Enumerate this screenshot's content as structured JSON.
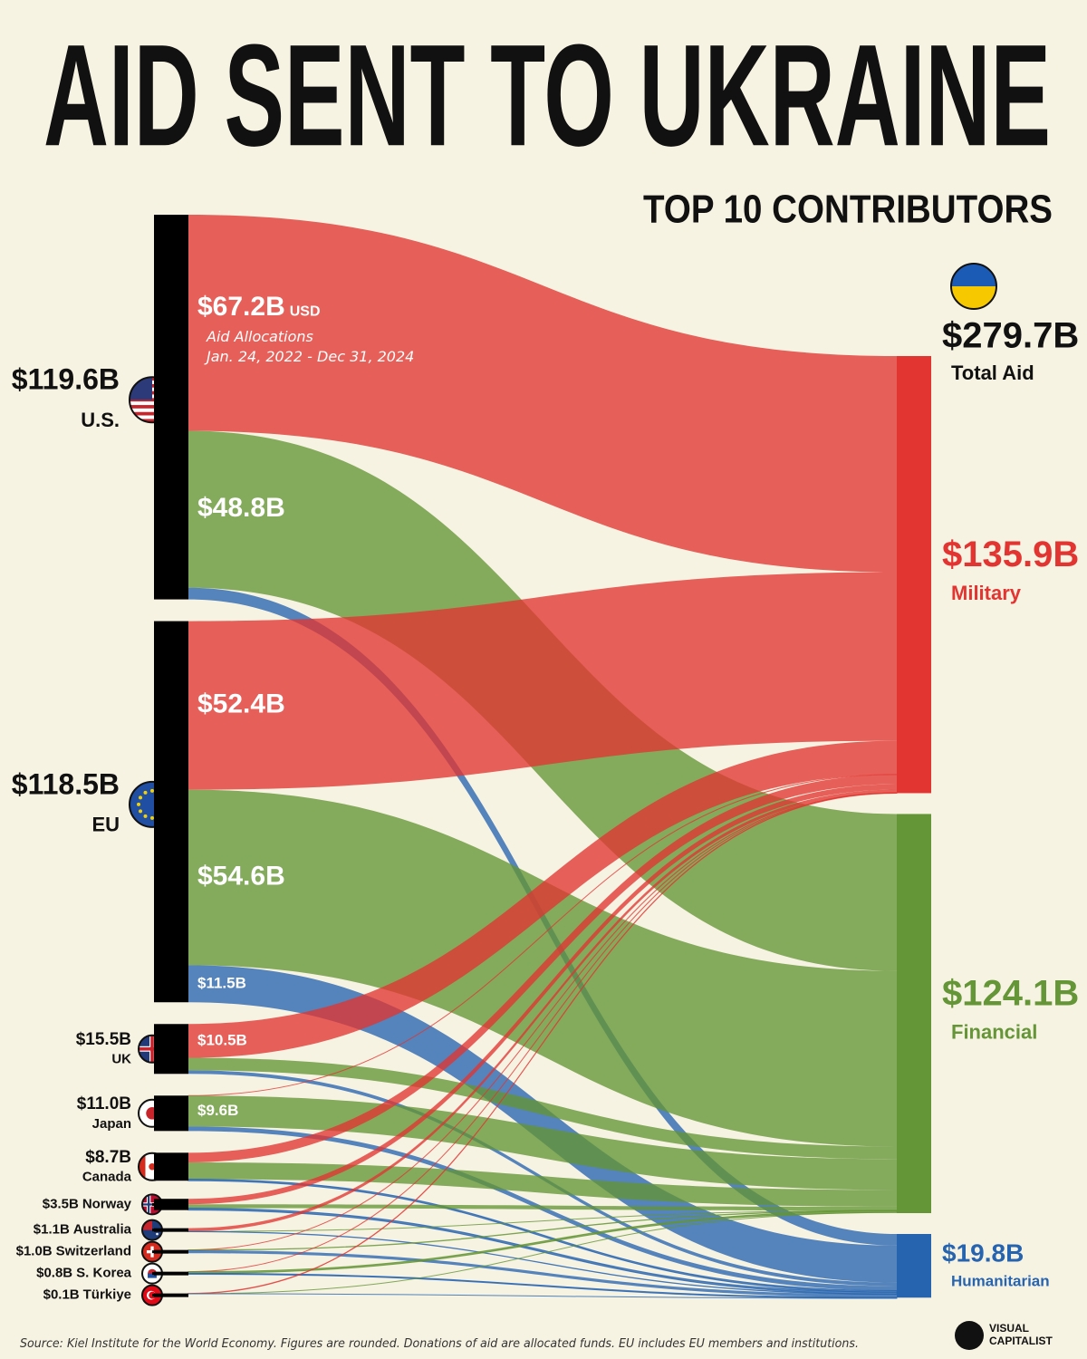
{
  "chart_data": {
    "type": "sankey",
    "title": "AID SENT TO UKRAINE",
    "subtitle": "TOP 10 CONTRIBUTORS",
    "unit": "USD",
    "note": "Aid Allocations",
    "period": "Jan. 24, 2022 - Dec 31, 2024",
    "source": "Source: Kiel Institute for the World Economy. Figures are rounded. Donations of aid are allocated funds. EU includes EU members and institutions.",
    "brand": [
      "VISUAL",
      "CAPITALIST"
    ],
    "total": {
      "name": "Total Aid",
      "value": 279.7,
      "value_label": "$279.7B"
    },
    "targets": [
      {
        "name": "Military",
        "value": 135.9,
        "value_label": "$135.9B",
        "color": "#e23431"
      },
      {
        "name": "Financial",
        "value": 124.1,
        "value_label": "$124.1B",
        "color": "#649536"
      },
      {
        "name": "Humanitarian",
        "value": 19.8,
        "value_label": "$19.8B",
        "color": "#2764b0"
      }
    ],
    "sources": [
      {
        "name": "U.S.",
        "value": 119.6,
        "value_label": "$119.6B",
        "flows": [
          67.2,
          48.8,
          3.6
        ],
        "flow_labels": [
          "$67.2B",
          "$48.8B",
          null
        ]
      },
      {
        "name": "EU",
        "value": 118.5,
        "value_label": "$118.5B",
        "flows": [
          52.4,
          54.6,
          11.5
        ],
        "flow_labels": [
          "$52.4B",
          "$54.6B",
          "$11.5B"
        ]
      },
      {
        "name": "UK",
        "value": 15.5,
        "value_label": "$15.5B",
        "flows": [
          10.5,
          3.9,
          1.1
        ],
        "flow_labels": [
          "$10.5B",
          null,
          null
        ]
      },
      {
        "name": "Japan",
        "value": 11.0,
        "value_label": "$11.0B",
        "flows": [
          0,
          9.6,
          1.4
        ],
        "flow_labels": [
          null,
          "$9.6B",
          null
        ]
      },
      {
        "name": "Canada",
        "value": 8.7,
        "value_label": "$8.7B",
        "flows": [
          3.0,
          5.2,
          0.5
        ],
        "flow_labels": [
          null,
          null,
          null
        ]
      },
      {
        "name": "Norway",
        "value": 3.5,
        "value_label": "$3.5B",
        "flows": [
          1.7,
          1.2,
          0.6
        ],
        "flow_labels": [
          null,
          null,
          null
        ]
      },
      {
        "name": "Australia",
        "value": 1.1,
        "value_label": "$1.1B",
        "flows": [
          1.0,
          0,
          0.1
        ],
        "flow_labels": [
          null,
          null,
          null
        ]
      },
      {
        "name": "Switzerland",
        "value": 1.0,
        "value_label": "$1.0B",
        "flows": [
          0,
          0.1,
          0.9
        ],
        "flow_labels": [
          null,
          null,
          null
        ]
      },
      {
        "name": "S. Korea",
        "value": 0.8,
        "value_label": "$0.8B",
        "flows": [
          0,
          0.5,
          0.3
        ],
        "flow_labels": [
          null,
          null,
          null
        ]
      },
      {
        "name": "Türkiye",
        "value": 0.1,
        "value_label": "$0.1B",
        "flows": [
          0.1,
          0,
          0
        ],
        "flow_labels": [
          null,
          null,
          null
        ]
      }
    ]
  }
}
